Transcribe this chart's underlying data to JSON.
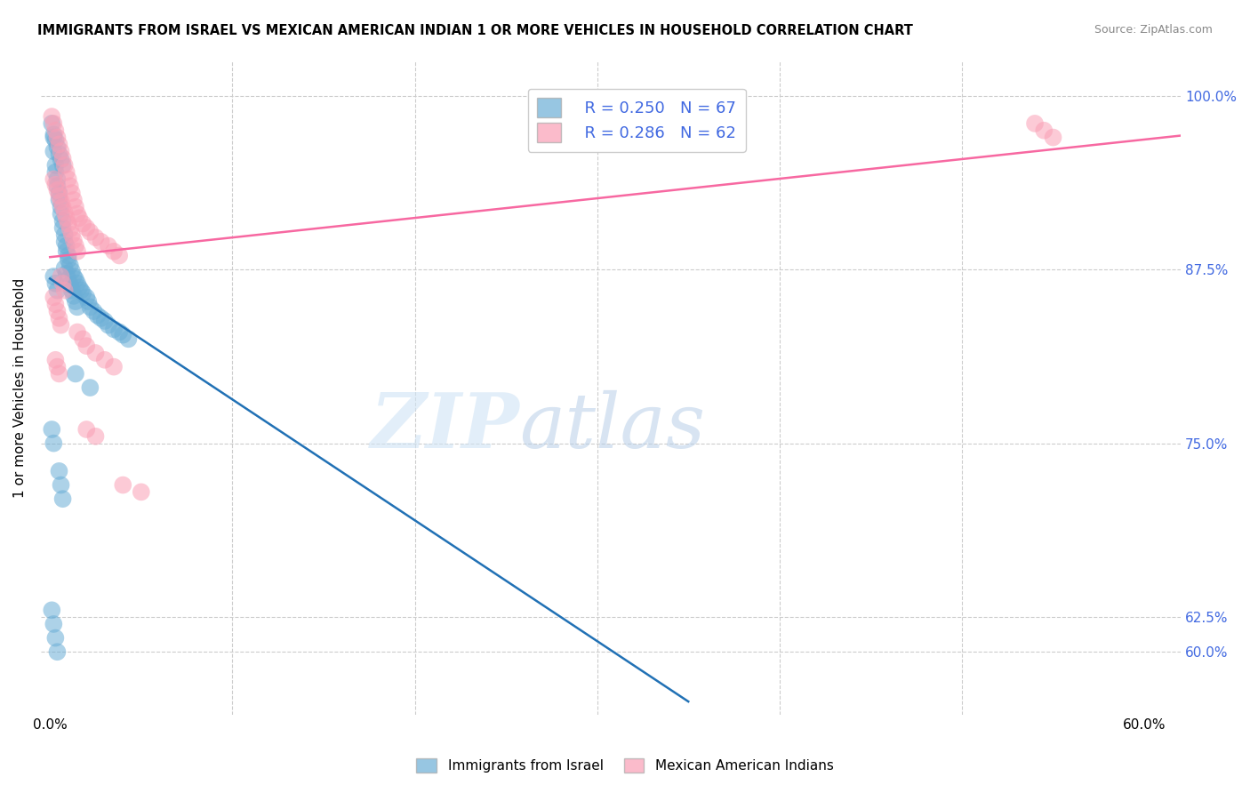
{
  "title": "IMMIGRANTS FROM ISRAEL VS MEXICAN AMERICAN INDIAN 1 OR MORE VEHICLES IN HOUSEHOLD CORRELATION CHART",
  "source": "Source: ZipAtlas.com",
  "ylabel": "1 or more Vehicles in Household",
  "ytick_labels": [
    "60.0%",
    "62.5%",
    "75.0%",
    "87.5%",
    "100.0%"
  ],
  "ytick_vals": [
    0.6,
    0.625,
    0.75,
    0.875,
    1.0
  ],
  "xtick_positions": [
    0.0,
    0.1,
    0.2,
    0.3,
    0.4,
    0.5,
    0.6
  ],
  "xtick_labels": [
    "0.0%",
    "",
    "",
    "",
    "",
    "",
    "60.0%"
  ],
  "legend_blue_r": "R = 0.250",
  "legend_blue_n": "N = 67",
  "legend_pink_r": "R = 0.286",
  "legend_pink_n": "N = 62",
  "legend_blue_label": "Immigrants from Israel",
  "legend_pink_label": "Mexican American Indians",
  "blue_color": "#6baed6",
  "pink_color": "#fa9fb5",
  "blue_line_color": "#2171b5",
  "pink_line_color": "#f768a1",
  "watermark_zip": "ZIP",
  "watermark_atlas": "atlas",
  "xlim": [
    -0.005,
    0.62
  ],
  "ylim": [
    0.555,
    1.025
  ],
  "blue_x": [
    0.001,
    0.002,
    0.002,
    0.003,
    0.003,
    0.004,
    0.004,
    0.005,
    0.005,
    0.006,
    0.006,
    0.007,
    0.007,
    0.008,
    0.008,
    0.009,
    0.009,
    0.01,
    0.01,
    0.011,
    0.012,
    0.013,
    0.014,
    0.015,
    0.016,
    0.017,
    0.018,
    0.02,
    0.021,
    0.022,
    0.024,
    0.026,
    0.028,
    0.03,
    0.032,
    0.035,
    0.038,
    0.04,
    0.043,
    0.002,
    0.003,
    0.004,
    0.005,
    0.006,
    0.007,
    0.008,
    0.009,
    0.01,
    0.011,
    0.012,
    0.013,
    0.014,
    0.015,
    0.002,
    0.003,
    0.004,
    0.014,
    0.022,
    0.005,
    0.006,
    0.007,
    0.001,
    0.002,
    0.003,
    0.004,
    0.001,
    0.002
  ],
  "blue_y": [
    0.98,
    0.96,
    0.97,
    0.95,
    0.945,
    0.94,
    0.935,
    0.93,
    0.925,
    0.92,
    0.915,
    0.91,
    0.905,
    0.9,
    0.895,
    0.892,
    0.888,
    0.885,
    0.882,
    0.878,
    0.874,
    0.87,
    0.868,
    0.865,
    0.862,
    0.86,
    0.858,
    0.855,
    0.852,
    0.848,
    0.845,
    0.842,
    0.84,
    0.838,
    0.835,
    0.832,
    0.83,
    0.828,
    0.825,
    0.972,
    0.968,
    0.963,
    0.958,
    0.954,
    0.95,
    0.876,
    0.872,
    0.868,
    0.864,
    0.86,
    0.856,
    0.852,
    0.848,
    0.87,
    0.865,
    0.86,
    0.8,
    0.79,
    0.73,
    0.72,
    0.71,
    0.63,
    0.62,
    0.61,
    0.6,
    0.76,
    0.75
  ],
  "pink_x": [
    0.001,
    0.002,
    0.003,
    0.004,
    0.005,
    0.006,
    0.007,
    0.008,
    0.009,
    0.01,
    0.011,
    0.012,
    0.013,
    0.014,
    0.015,
    0.016,
    0.018,
    0.02,
    0.022,
    0.025,
    0.028,
    0.032,
    0.035,
    0.038,
    0.002,
    0.003,
    0.004,
    0.005,
    0.006,
    0.007,
    0.008,
    0.009,
    0.01,
    0.011,
    0.012,
    0.013,
    0.014,
    0.015,
    0.002,
    0.003,
    0.004,
    0.005,
    0.006,
    0.003,
    0.004,
    0.005,
    0.015,
    0.018,
    0.02,
    0.025,
    0.03,
    0.035,
    0.54,
    0.545,
    0.55,
    0.02,
    0.025,
    0.04,
    0.05,
    0.006,
    0.007,
    0.008
  ],
  "pink_y": [
    0.985,
    0.98,
    0.975,
    0.97,
    0.965,
    0.96,
    0.955,
    0.95,
    0.945,
    0.94,
    0.935,
    0.93,
    0.925,
    0.92,
    0.915,
    0.912,
    0.908,
    0.905,
    0.902,
    0.898,
    0.895,
    0.892,
    0.888,
    0.885,
    0.94,
    0.936,
    0.932,
    0.928,
    0.924,
    0.92,
    0.916,
    0.912,
    0.908,
    0.904,
    0.9,
    0.896,
    0.892,
    0.888,
    0.855,
    0.85,
    0.845,
    0.84,
    0.835,
    0.81,
    0.805,
    0.8,
    0.83,
    0.825,
    0.82,
    0.815,
    0.81,
    0.805,
    0.98,
    0.975,
    0.97,
    0.76,
    0.755,
    0.72,
    0.715,
    0.87,
    0.865,
    0.86
  ]
}
